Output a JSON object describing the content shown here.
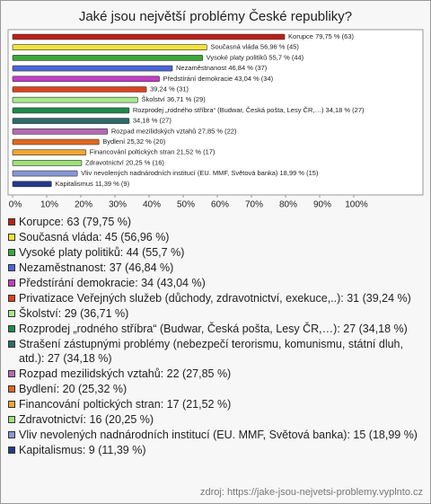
{
  "chart_data": {
    "type": "bar",
    "orientation": "horizontal",
    "title": "Jaké jsou největší problémy České republiky?",
    "values": [
      79.75,
      56.96,
      55.7,
      46.84,
      43.04,
      39.24,
      36.71,
      34.18,
      34.18,
      27.85,
      25.32,
      21.52,
      20.25,
      18.99,
      11.39
    ],
    "value_labels": [
      "Korupce 79,75 % (63)",
      "Současná vláda 56,96 % (45)",
      "Vysoké platy politiků 55,7 % (44)",
      "Nezaměstnanost 46,84 % (37)",
      "Předstírání demokracie 43,04 % (34)",
      "39,24 % (31)",
      "Školství 36,71 % (29)",
      "Rozprodej „rodného stříbra“ (Budwar, Česká pošta, Lesy ČR,…) 34,18 % (27)",
      "34,18 % (27)",
      "Rozpad mezilidských vztahů 27,85 % (22)",
      "Bydlení 25,32 % (20)",
      "Financování poltických stran 21,52 % (17)",
      "Zdravotnictví 20,25 % (16)",
      "Vliv nevolených nadnárodních institucí (EU. MMF, Světová banka) 18,99 % (15)",
      "Kapitalismus 11,39 % (9)"
    ],
    "colors": [
      "#b8211b",
      "#f2e23a",
      "#3aa83a",
      "#4a63d8",
      "#c43cc4",
      "#d9431e",
      "#a6ea8c",
      "#1e8a4a",
      "#2d6b6b",
      "#b46ab4",
      "#e0661e",
      "#f0a632",
      "#9ee07a",
      "#8898d6",
      "#223a8c"
    ],
    "legend": [
      "Korupce: 63 (79,75 %)",
      "Současná vláda: 45 (56,96 %)",
      "Vysoké platy politiků: 44 (55,7 %)",
      "Nezaměstnanost: 37 (46,84 %)",
      "Předstírání demokracie: 34 (43,04 %)",
      "Privatizace Veřejných služeb (důchody, zdravotnictví, exekuce,..): 31 (39,24 %)",
      "Školství: 29 (36,71 %)",
      "Rozprodej „rodného stříbra“ (Budwar, Česká pošta, Lesy ČR,…): 27 (34,18 %)",
      "Strašení zástupnými problémy (nebezpečí terorismu, komunismu, státní dluh, atd.): 27 (34,18 %)",
      "Rozpad mezilidských vztahů: 22 (27,85 %)",
      "Bydlení: 20 (25,32 %)",
      "Financování poltických stran: 17 (21,52 %)",
      "Zdravotnictví: 16 (20,25 %)",
      "Vliv nevolených nadnárodních institucí (EU. MMF, Světová banka): 15 (18,99 %)",
      "Kapitalismus: 9 (11,39 %)"
    ],
    "xlim": [
      0,
      100
    ],
    "xticks": [
      {
        "value": 0,
        "label": "0%"
      },
      {
        "value": 10,
        "label": "10%"
      },
      {
        "value": 20,
        "label": "20%"
      },
      {
        "value": 30,
        "label": "30%"
      },
      {
        "value": 40,
        "label": "40%"
      },
      {
        "value": 50,
        "label": "50%"
      },
      {
        "value": 60,
        "label": "60%"
      },
      {
        "value": 70,
        "label": "70%"
      },
      {
        "value": 80,
        "label": "80%"
      },
      {
        "value": 90,
        "label": "90%"
      },
      {
        "value": 100,
        "label": "100%"
      }
    ],
    "source": "zdroj: https://jake-jsou-nejvetsi-problemy.vyplnto.cz"
  }
}
